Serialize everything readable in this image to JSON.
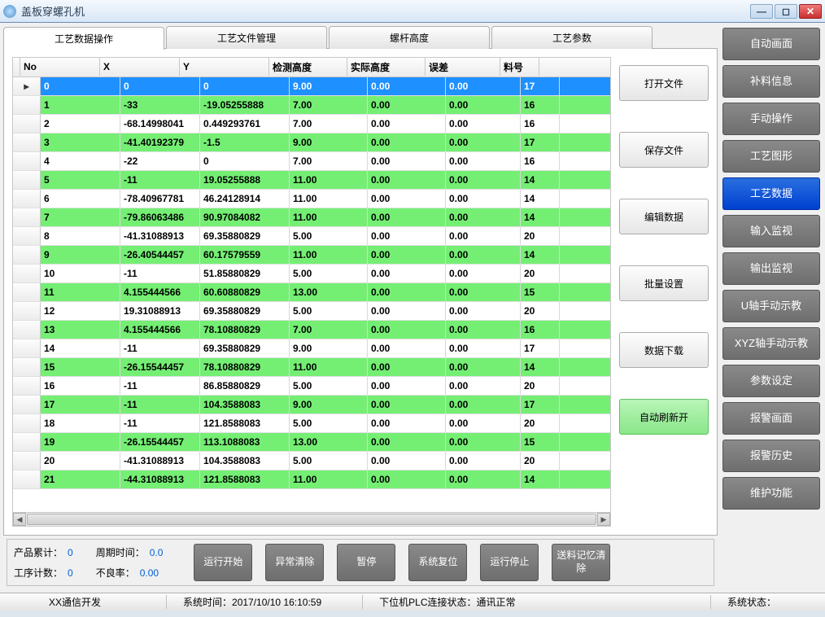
{
  "window": {
    "title": "盖板穿螺孔机"
  },
  "tabs": [
    {
      "id": "data-ops",
      "label": "工艺数据操作",
      "active": true
    },
    {
      "id": "file-mgmt",
      "label": "工艺文件管理",
      "active": false
    },
    {
      "id": "screw-h",
      "label": "螺杆高度",
      "active": false
    },
    {
      "id": "params",
      "label": "工艺参数",
      "active": false
    }
  ],
  "table": {
    "columns": [
      "No",
      "X",
      "Y",
      "检测高度",
      "实际高度",
      "误差",
      "料号"
    ],
    "selected_index": 0,
    "rows": [
      [
        "0",
        "0",
        "0",
        "9.00",
        "0.00",
        "0.00",
        "17"
      ],
      [
        "1",
        "-33",
        "-19.05255888",
        "7.00",
        "0.00",
        "0.00",
        "16"
      ],
      [
        "2",
        "-68.14998041",
        "0.449293761",
        "7.00",
        "0.00",
        "0.00",
        "16"
      ],
      [
        "3",
        "-41.40192379",
        "-1.5",
        "9.00",
        "0.00",
        "0.00",
        "17"
      ],
      [
        "4",
        "-22",
        "0",
        "7.00",
        "0.00",
        "0.00",
        "16"
      ],
      [
        "5",
        "-11",
        "19.05255888",
        "11.00",
        "0.00",
        "0.00",
        "14"
      ],
      [
        "6",
        "-78.40967781",
        "46.24128914",
        "11.00",
        "0.00",
        "0.00",
        "14"
      ],
      [
        "7",
        "-79.86063486",
        "90.97084082",
        "11.00",
        "0.00",
        "0.00",
        "14"
      ],
      [
        "8",
        "-41.31088913",
        "69.35880829",
        "5.00",
        "0.00",
        "0.00",
        "20"
      ],
      [
        "9",
        "-26.40544457",
        "60.17579559",
        "11.00",
        "0.00",
        "0.00",
        "14"
      ],
      [
        "10",
        "-11",
        "51.85880829",
        "5.00",
        "0.00",
        "0.00",
        "20"
      ],
      [
        "11",
        "4.155444566",
        "60.60880829",
        "13.00",
        "0.00",
        "0.00",
        "15"
      ],
      [
        "12",
        "19.31088913",
        "69.35880829",
        "5.00",
        "0.00",
        "0.00",
        "20"
      ],
      [
        "13",
        "4.155444566",
        "78.10880829",
        "7.00",
        "0.00",
        "0.00",
        "16"
      ],
      [
        "14",
        "-11",
        "69.35880829",
        "9.00",
        "0.00",
        "0.00",
        "17"
      ],
      [
        "15",
        "-26.15544457",
        "78.10880829",
        "11.00",
        "0.00",
        "0.00",
        "14"
      ],
      [
        "16",
        "-11",
        "86.85880829",
        "5.00",
        "0.00",
        "0.00",
        "20"
      ],
      [
        "17",
        "-11",
        "104.3588083",
        "9.00",
        "0.00",
        "0.00",
        "17"
      ],
      [
        "18",
        "-11",
        "121.8588083",
        "5.00",
        "0.00",
        "0.00",
        "20"
      ],
      [
        "19",
        "-26.15544457",
        "113.1088083",
        "13.00",
        "0.00",
        "0.00",
        "15"
      ],
      [
        "20",
        "-41.31088913",
        "104.3588083",
        "5.00",
        "0.00",
        "0.00",
        "20"
      ],
      [
        "21",
        "-44.31088913",
        "121.8588083",
        "11.00",
        "0.00",
        "0.00",
        "14"
      ]
    ]
  },
  "file_buttons": [
    {
      "id": "open",
      "label": "打开文件"
    },
    {
      "id": "save",
      "label": "保存文件"
    },
    {
      "id": "edit",
      "label": "编辑数据"
    },
    {
      "id": "batch",
      "label": "批量设置"
    },
    {
      "id": "download",
      "label": "数据下载"
    },
    {
      "id": "refresh",
      "label": "自动刷新开",
      "green": true
    }
  ],
  "nav_buttons": [
    {
      "id": "auto",
      "label": "自动画面"
    },
    {
      "id": "feedinfo",
      "label": "补料信息"
    },
    {
      "id": "manual",
      "label": "手动操作"
    },
    {
      "id": "graph",
      "label": "工艺图形"
    },
    {
      "id": "procdata",
      "label": "工艺数据",
      "active": true
    },
    {
      "id": "inmon",
      "label": "输入监视"
    },
    {
      "id": "outmon",
      "label": "输出监视"
    },
    {
      "id": "uteach",
      "label": "U轴手动示教"
    },
    {
      "id": "xyzteach",
      "label": "XYZ轴手动示教"
    },
    {
      "id": "paramset",
      "label": "参数设定"
    },
    {
      "id": "alarm",
      "label": "报警画面"
    },
    {
      "id": "alarmlog",
      "label": "报警历史"
    },
    {
      "id": "maint",
      "label": "维护功能"
    }
  ],
  "stats": {
    "product_total_label": "产品累计：",
    "product_total": "0",
    "cycle_time_label": "周期时间：",
    "cycle_time": "0.0",
    "proc_count_label": "工序计数：",
    "proc_count": "0",
    "defect_rate_label": "不良率：",
    "defect_rate": "0.00"
  },
  "action_buttons": [
    {
      "id": "start",
      "label": "运行开始"
    },
    {
      "id": "clearerr",
      "label": "异常清除"
    },
    {
      "id": "pause",
      "label": "暂停"
    },
    {
      "id": "sysreset",
      "label": "系统复位"
    },
    {
      "id": "stop",
      "label": "运行停止"
    },
    {
      "id": "feedclear",
      "label": "送料记忆清除"
    }
  ],
  "status_strip": {
    "comm": "XX通信开发",
    "time_lbl": "系统时间：",
    "time_val": "2017/10/10 16:10:59",
    "plc_lbl": "下位机PLC连接状态：",
    "plc_val": "通讯正常",
    "sys_lbl": "系统状态："
  },
  "colors": {
    "row_odd": "#74ef74",
    "row_sel": "#1e90ff",
    "nav_btn": "#787878",
    "nav_active": "#0a50e0"
  }
}
